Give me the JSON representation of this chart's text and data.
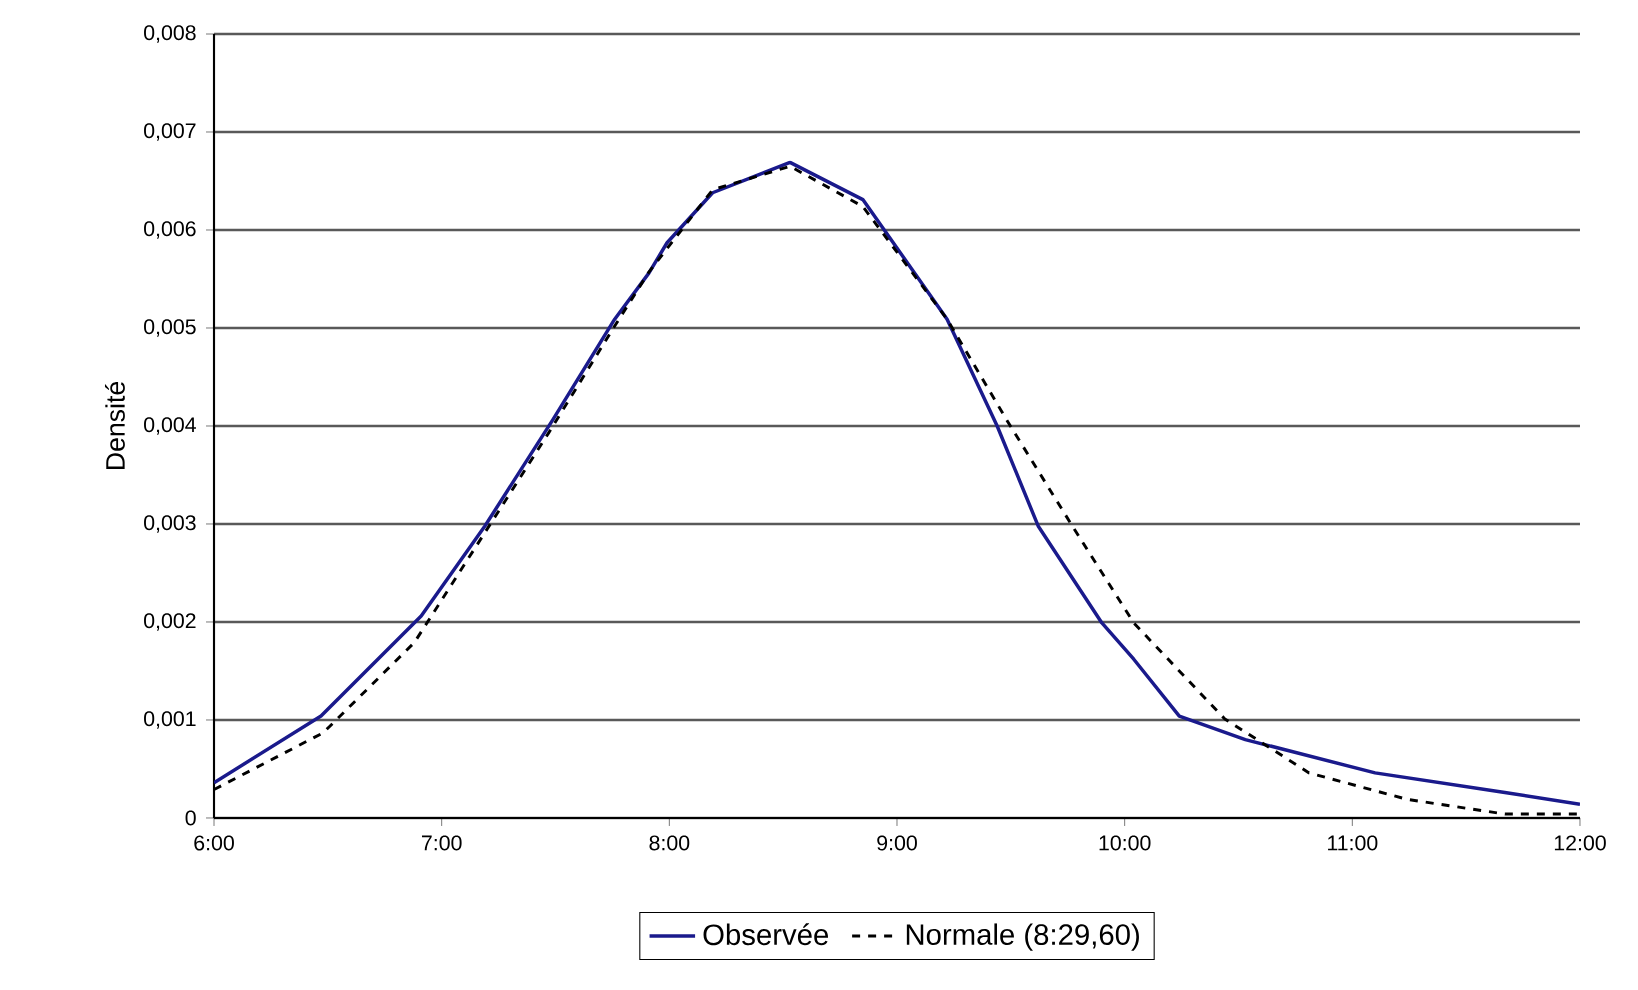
{
  "chart_data": {
    "type": "line",
    "ylabel": "Densité",
    "xlim": [
      6,
      12
    ],
    "xticks": [
      {
        "value": 6,
        "label": "6:00"
      },
      {
        "value": 7,
        "label": "7:00"
      },
      {
        "value": 8,
        "label": "8:00"
      },
      {
        "value": 9,
        "label": "9:00"
      },
      {
        "value": 10,
        "label": "10:00"
      },
      {
        "value": 11,
        "label": "11:00"
      },
      {
        "value": 12,
        "label": "12:00"
      }
    ],
    "ylim": [
      0,
      0.008
    ],
    "yticks": [
      0,
      {
        "value": 0.001,
        "label": "0,001"
      },
      {
        "value": 0.002,
        "label": "0,002"
      },
      {
        "value": 0.003,
        "label": "0,003"
      },
      {
        "value": 0.004,
        "label": "0,004"
      },
      {
        "value": 0.005,
        "label": "0,005"
      },
      {
        "value": 0.006,
        "label": "0,006"
      },
      {
        "value": 0.007,
        "label": "0,007"
      },
      {
        "value": 0.008,
        "label": "0,008"
      }
    ],
    "grid": "y",
    "legend": "bottom",
    "marker": "none",
    "series": [
      {
        "name": "Observée",
        "color": "#1a1a8c",
        "line_style": "solid",
        "x": [
          6.0,
          6.47,
          6.91,
          7.19,
          7.49,
          7.76,
          7.91,
          7.99,
          8.19,
          8.53,
          8.85,
          9.22,
          9.44,
          9.62,
          9.9,
          10.04,
          10.24,
          10.53,
          11.1,
          11.67,
          12.0
        ],
        "values": [
          0.00036,
          0.00104,
          0.00206,
          0.00298,
          0.00407,
          0.00509,
          0.00556,
          0.00587,
          0.00638,
          0.00669,
          0.00631,
          0.00509,
          0.004,
          0.00298,
          0.00199,
          0.00162,
          0.00104,
          0.0008,
          0.00046,
          0.00026,
          0.00014
        ]
      },
      {
        "name": "Normale (8:29,60)",
        "color": "#000000",
        "line_style": "dashed",
        "x": [
          6.0,
          6.48,
          6.88,
          7.17,
          7.47,
          7.76,
          7.91,
          8.19,
          8.53,
          8.85,
          9.22,
          9.49,
          9.77,
          10.04,
          10.44,
          10.81,
          11.24,
          11.67,
          12.0
        ],
        "values": [
          0.00029,
          0.00087,
          0.00179,
          0.00284,
          0.00393,
          0.00502,
          0.00557,
          0.00641,
          0.00665,
          0.00624,
          0.00509,
          0.00403,
          0.00298,
          0.00199,
          0.00101,
          0.00046,
          0.00019,
          4e-05,
          4e-05
        ]
      }
    ]
  }
}
